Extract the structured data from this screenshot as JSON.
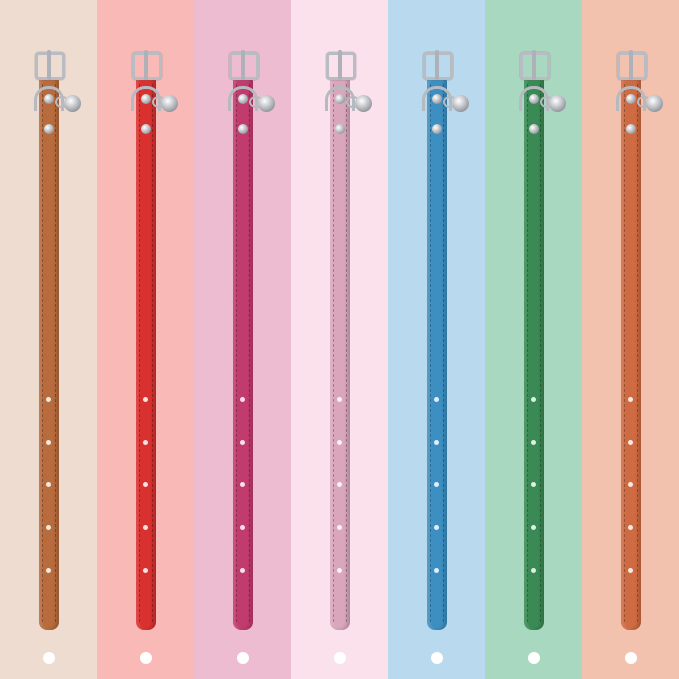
{
  "collars": [
    {
      "background": "#efdcd0",
      "strap": "#b86b3c"
    },
    {
      "background": "#f9b9b6",
      "strap": "#d8312f"
    },
    {
      "background": "#eebcd0",
      "strap": "#c23b6e"
    },
    {
      "background": "#fbe1ec",
      "strap": "#d9a6bc"
    },
    {
      "background": "#b9d9ee",
      "strap": "#3d8fc2"
    },
    {
      "background": "#a9d8c1",
      "strap": "#3a8a55"
    },
    {
      "background": "#f2c2ae",
      "strap": "#cf6b42"
    }
  ],
  "holes_per_collar": 5,
  "hardware": [
    "buckle-icon",
    "d-ring-icon",
    "bell-icon",
    "rivet-icon"
  ]
}
